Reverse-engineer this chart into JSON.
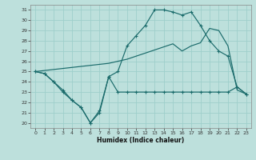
{
  "xlabel": "Humidex (Indice chaleur)",
  "bg_color": "#bde0dc",
  "grid_color": "#9ecfcb",
  "line_color": "#1a6b6b",
  "xlim": [
    -0.5,
    23.5
  ],
  "ylim": [
    19.5,
    31.5
  ],
  "xticks": [
    0,
    1,
    2,
    3,
    4,
    5,
    6,
    7,
    8,
    9,
    10,
    11,
    12,
    13,
    14,
    15,
    16,
    17,
    18,
    19,
    20,
    21,
    22,
    23
  ],
  "yticks": [
    20,
    21,
    22,
    23,
    24,
    25,
    26,
    27,
    28,
    29,
    30,
    31
  ],
  "line1_x": [
    0,
    1,
    2,
    3,
    4,
    5,
    6,
    7,
    8,
    9,
    10,
    11,
    12,
    13,
    14,
    15,
    16,
    17,
    18,
    19,
    20,
    21,
    22,
    23
  ],
  "line1_y": [
    25.0,
    24.8,
    24.0,
    23.0,
    22.2,
    21.5,
    20.0,
    21.0,
    24.5,
    25.0,
    27.5,
    28.5,
    29.5,
    31.0,
    31.0,
    30.8,
    30.5,
    30.8,
    29.5,
    28.0,
    27.0,
    26.5,
    23.5,
    22.8
  ],
  "line2_x": [
    0,
    1,
    2,
    3,
    4,
    5,
    6,
    7,
    8,
    9,
    10,
    11,
    12,
    13,
    14,
    15,
    16,
    17,
    18,
    19,
    20,
    21,
    22,
    23
  ],
  "line2_y": [
    25.0,
    25.1,
    25.2,
    25.3,
    25.4,
    25.5,
    25.6,
    25.7,
    25.8,
    26.0,
    26.2,
    26.5,
    26.8,
    27.1,
    27.4,
    27.7,
    27.0,
    27.5,
    27.8,
    29.2,
    29.0,
    27.5,
    23.2,
    22.8
  ],
  "line3_x": [
    0,
    1,
    2,
    3,
    4,
    5,
    6,
    7,
    8,
    9,
    10,
    11,
    12,
    13,
    14,
    15,
    16,
    17,
    18,
    19,
    20,
    21,
    22,
    23
  ],
  "line3_y": [
    25.0,
    24.8,
    24.0,
    23.2,
    22.2,
    21.5,
    20.0,
    21.2,
    24.5,
    23.0,
    23.0,
    23.0,
    23.0,
    23.0,
    23.0,
    23.0,
    23.0,
    23.0,
    23.0,
    23.0,
    23.0,
    23.0,
    23.5,
    22.8
  ]
}
